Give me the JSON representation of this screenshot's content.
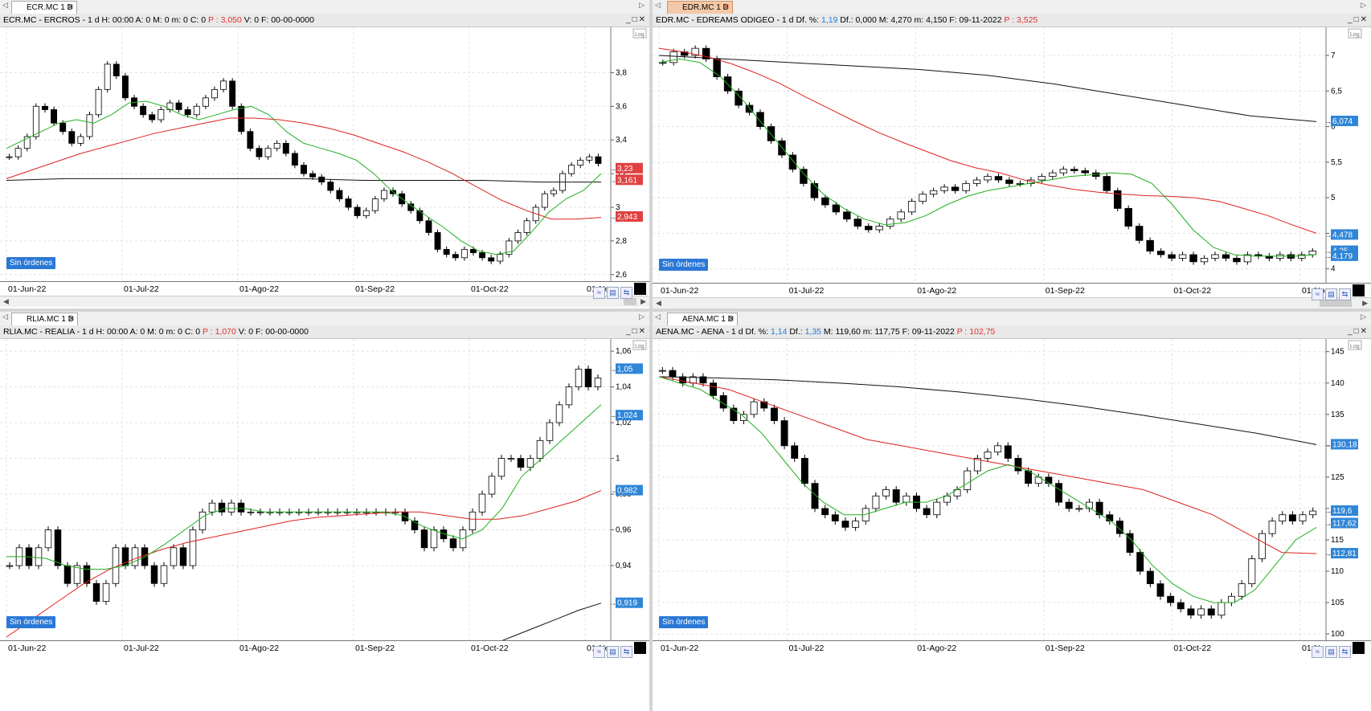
{
  "panels": [
    {
      "tab": "ECR.MC 1 D",
      "tab_active": false,
      "header_text": "ECR.MC - ERCROS -  1 d  H: 00:00  A: 0  M: 0  m: 0  C: 0  ",
      "header_p": "P : 3,050",
      "header_tail": "  V: 0  F: 00-00-0000",
      "x_ticks": [
        "01-Jun-22",
        "01-Jul-22",
        "01-Ago-22",
        "01-Sep-22",
        "01-Oct-22",
        "01-Nov"
      ],
      "y_ticks": [
        "3,8",
        "3,6",
        "3,4",
        "3,2",
        "3",
        "2,8",
        "2,6"
      ],
      "y_range": [
        2.58,
        4.05
      ],
      "tag_values": [
        {
          "text": "3,23",
          "color": "#e04040",
          "y": 3.23
        },
        {
          "text": "3,161",
          "color": "#e04040",
          "y": 3.161
        },
        {
          "text": "2,943",
          "color": "#e04040",
          "y": 2.943
        }
      ],
      "log_label": "Log",
      "orders_label": "Sin órdenes",
      "ma_short": [
        3.35,
        3.4,
        3.45,
        3.5,
        3.52,
        3.5,
        3.55,
        3.62,
        3.63,
        3.6,
        3.55,
        3.52,
        3.55,
        3.58,
        3.6,
        3.55,
        3.45,
        3.38,
        3.35,
        3.32,
        3.28,
        3.2,
        3.1,
        3.02,
        2.95,
        2.88,
        2.8,
        2.74,
        2.72,
        2.74,
        2.85,
        2.97,
        3.05,
        3.1,
        3.2
      ],
      "ma_long": [
        3.17,
        3.22,
        3.27,
        3.32,
        3.36,
        3.4,
        3.44,
        3.47,
        3.5,
        3.53,
        3.53,
        3.52,
        3.5,
        3.47,
        3.43,
        3.38,
        3.33,
        3.27,
        3.2,
        3.12,
        3.04,
        2.98,
        2.93,
        2.93,
        2.94
      ],
      "ma_200": [
        3.16,
        3.17,
        3.17,
        3.17,
        3.17,
        3.17,
        3.16,
        3.16,
        3.16,
        3.15,
        3.15
      ],
      "closes": [
        3.3,
        3.35,
        3.42,
        3.6,
        3.58,
        3.5,
        3.45,
        3.38,
        3.42,
        3.55,
        3.7,
        3.85,
        3.78,
        3.65,
        3.6,
        3.55,
        3.52,
        3.58,
        3.62,
        3.58,
        3.55,
        3.6,
        3.65,
        3.7,
        3.75,
        3.6,
        3.45,
        3.35,
        3.3,
        3.35,
        3.38,
        3.32,
        3.25,
        3.2,
        3.18,
        3.15,
        3.1,
        3.05,
        3.0,
        2.95,
        2.98,
        3.05,
        3.1,
        3.08,
        3.02,
        2.98,
        2.92,
        2.85,
        2.75,
        2.72,
        2.7,
        2.75,
        2.73,
        2.7,
        2.68,
        2.72,
        2.8,
        2.85,
        2.92,
        3.0,
        3.08,
        3.1,
        3.2,
        3.25,
        3.28,
        3.3,
        3.26
      ]
    },
    {
      "tab": "EDR.MC 1 D",
      "tab_active": true,
      "header_text": "EDR.MC - EDREAMS ODIGEO -  1 d  Df. %: ",
      "header_df": "1,19",
      "header_mid": "  Df.: 0,000  M: 4,270  m: 4,150  F: 09-11-2022  ",
      "header_p": "P : 3,525",
      "x_ticks": [
        "01-Jun-22",
        "01-Jul-22",
        "01-Ago-22",
        "01-Sep-22",
        "01-Oct-22",
        "01-No"
      ],
      "y_ticks": [
        "7",
        "6,5",
        "6",
        "5,5",
        "5",
        "4,5",
        "4"
      ],
      "y_range": [
        3.85,
        7.35
      ],
      "tag_values": [
        {
          "text": "6,074",
          "color": "#2f86d8",
          "y": 6.074
        },
        {
          "text": "4,478",
          "color": "#2f86d8",
          "y": 4.478
        },
        {
          "text": "4,25",
          "color": "#2f86d8",
          "y": 4.25
        },
        {
          "text": "4,179",
          "color": "#2f86d8",
          "y": 4.179
        }
      ],
      "log_label": "Log",
      "orders_label": "Sin órdenes",
      "closes": [
        6.9,
        7.05,
        7.0,
        7.1,
        6.95,
        6.7,
        6.5,
        6.3,
        6.2,
        6.0,
        5.8,
        5.6,
        5.4,
        5.2,
        5.0,
        4.9,
        4.8,
        4.7,
        4.6,
        4.55,
        4.6,
        4.7,
        4.8,
        4.95,
        5.05,
        5.1,
        5.15,
        5.1,
        5.2,
        5.25,
        5.3,
        5.25,
        5.2,
        5.2,
        5.25,
        5.3,
        5.35,
        5.4,
        5.38,
        5.35,
        5.3,
        5.1,
        4.85,
        4.6,
        4.4,
        4.25,
        4.2,
        4.15,
        4.2,
        4.1,
        4.15,
        4.2,
        4.15,
        4.1,
        4.2,
        4.18,
        4.15,
        4.2,
        4.15,
        4.2,
        4.25
      ],
      "ma_short": [
        6.9,
        6.95,
        6.9,
        6.7,
        6.4,
        6.05,
        5.7,
        5.35,
        5.05,
        4.85,
        4.7,
        4.62,
        4.65,
        4.75,
        4.9,
        5.02,
        5.1,
        5.15,
        5.2,
        5.25,
        5.3,
        5.32,
        5.35,
        5.33,
        5.2,
        4.9,
        4.55,
        4.3,
        4.2,
        4.18,
        4.18,
        4.18,
        4.2
      ],
      "ma_long": [
        7.1,
        7.05,
        6.98,
        6.88,
        6.75,
        6.6,
        6.42,
        6.25,
        6.08,
        5.92,
        5.78,
        5.65,
        5.52,
        5.42,
        5.35,
        5.25,
        5.18,
        5.12,
        5.08,
        5.05,
        5.03,
        5.02,
        5.0,
        4.95,
        4.85,
        4.75,
        4.62,
        4.5
      ],
      "ma_200": [
        7.0,
        6.95,
        6.9,
        6.85,
        6.8,
        6.72,
        6.6,
        6.45,
        6.3,
        6.15,
        6.07
      ]
    },
    {
      "tab": "RLIA.MC 1 D",
      "tab_active": false,
      "header_text": "RLIA.MC - REALIA -  1 d  H: 00:00  A: 0  M: 0  m: 0  C: 0  ",
      "header_p": "P : 1,070",
      "header_tail": "  V: 0  F: 00-00-0000",
      "x_ticks": [
        "01-Jun-22",
        "01-Jul-22",
        "01-Ago-22",
        "01-Sep-22",
        "01-Oct-22",
        "01-Nov"
      ],
      "y_ticks": [
        "1,06",
        "1,04",
        "1,02",
        "1",
        "0,98",
        "0,96",
        "0,94"
      ],
      "y_range": [
        0.9,
        1.065
      ],
      "tag_values": [
        {
          "text": "1,05",
          "color": "#2f86d8",
          "y": 1.05
        },
        {
          "text": "1,024",
          "color": "#2f86d8",
          "y": 1.024
        },
        {
          "text": "0,982",
          "color": "#2f86d8",
          "y": 0.982
        },
        {
          "text": "0,919",
          "color": "#2f86d8",
          "y": 0.919
        }
      ],
      "log_label": "Log",
      "orders_label": "Sin órdenes",
      "closes": [
        0.94,
        0.95,
        0.94,
        0.95,
        0.96,
        0.94,
        0.93,
        0.94,
        0.93,
        0.92,
        0.93,
        0.95,
        0.94,
        0.95,
        0.94,
        0.93,
        0.94,
        0.95,
        0.94,
        0.96,
        0.97,
        0.975,
        0.97,
        0.975,
        0.97,
        0.97,
        0.97,
        0.97,
        0.97,
        0.97,
        0.97,
        0.97,
        0.97,
        0.97,
        0.97,
        0.97,
        0.97,
        0.97,
        0.97,
        0.97,
        0.97,
        0.965,
        0.96,
        0.95,
        0.96,
        0.955,
        0.95,
        0.96,
        0.97,
        0.98,
        0.99,
        1.0,
        1.0,
        0.995,
        1.0,
        1.01,
        1.02,
        1.03,
        1.04,
        1.05,
        1.04,
        1.045
      ],
      "ma_short": [
        0.945,
        0.945,
        0.944,
        0.94,
        0.938,
        0.938,
        0.94,
        0.945,
        0.952,
        0.96,
        0.968,
        0.972,
        0.972,
        0.97,
        0.97,
        0.97,
        0.97,
        0.97,
        0.97,
        0.97,
        0.968,
        0.962,
        0.958,
        0.955,
        0.96,
        0.972,
        0.99,
        1.0,
        1.01,
        1.02,
        1.03
      ],
      "ma_long": [
        0.9,
        0.91,
        0.92,
        0.93,
        0.938,
        0.944,
        0.949,
        0.953,
        0.956,
        0.959,
        0.962,
        0.965,
        0.967,
        0.968,
        0.969,
        0.97,
        0.97,
        0.968,
        0.966,
        0.966,
        0.968,
        0.972,
        0.976,
        0.982
      ],
      "ma_200": [
        0.895,
        0.9,
        0.905,
        0.91,
        0.915,
        0.919
      ]
    },
    {
      "tab": "AENA.MC 1 D",
      "tab_active": false,
      "header_text": "AENA.MC - AENA -  1 d  Df. %: ",
      "header_df": "1,14",
      "header_df2_label": "  Df.: ",
      "header_df2": "1,35",
      "header_mid": "  M: 119,60  m: 117,75  F: 09-11-2022  ",
      "header_p": "P : 102,75",
      "x_ticks": [
        "01-Jun-22",
        "01-Jul-22",
        "01-Ago-22",
        "01-Sep-22",
        "01-Oct-22",
        "01-N"
      ],
      "y_ticks": [
        "145",
        "140",
        "135",
        "130",
        "125",
        "120",
        "115",
        "110",
        "105",
        "100"
      ],
      "y_range": [
        99.5,
        146.5
      ],
      "tag_values": [
        {
          "text": "130,18",
          "color": "#2f86d8",
          "y": 130.18
        },
        {
          "text": "119,6",
          "color": "#2f86d8",
          "y": 119.6
        },
        {
          "text": "117,62",
          "color": "#2f86d8",
          "y": 117.62
        },
        {
          "text": "112,81",
          "color": "#2f86d8",
          "y": 112.81
        }
      ],
      "log_label": "Log",
      "orders_label": "Sin órdenes",
      "closes": [
        142,
        141,
        140,
        141,
        140,
        138,
        136,
        134,
        135,
        137,
        136,
        134,
        130,
        128,
        124,
        120,
        119,
        118,
        117,
        118,
        120,
        122,
        123,
        121,
        122,
        120,
        119,
        121,
        122,
        123,
        126,
        128,
        129,
        130,
        128,
        126,
        124,
        125,
        124,
        121,
        120,
        120,
        121,
        119,
        118,
        116,
        113,
        110,
        108,
        106,
        105,
        104,
        103,
        104,
        103,
        105,
        106,
        108,
        112,
        116,
        118,
        119,
        118,
        119,
        119.6
      ],
      "ma_short": [
        141,
        140,
        139,
        137,
        135,
        132,
        128,
        124,
        121,
        119,
        119,
        120,
        121,
        121,
        122,
        124,
        126,
        127,
        126,
        124,
        122,
        120,
        118,
        115,
        111,
        108,
        106,
        105,
        105,
        107,
        111,
        115,
        117
      ],
      "ma_long": [
        141,
        140,
        139,
        137,
        135,
        133,
        131,
        130,
        129,
        128,
        127,
        126,
        125,
        124,
        123,
        121,
        119,
        116,
        113,
        112.81
      ],
      "ma_200": [
        141,
        140.8,
        140.5,
        140,
        139.4,
        138.6,
        137.6,
        136.4,
        135,
        133.5,
        132,
        130.18
      ]
    }
  ]
}
